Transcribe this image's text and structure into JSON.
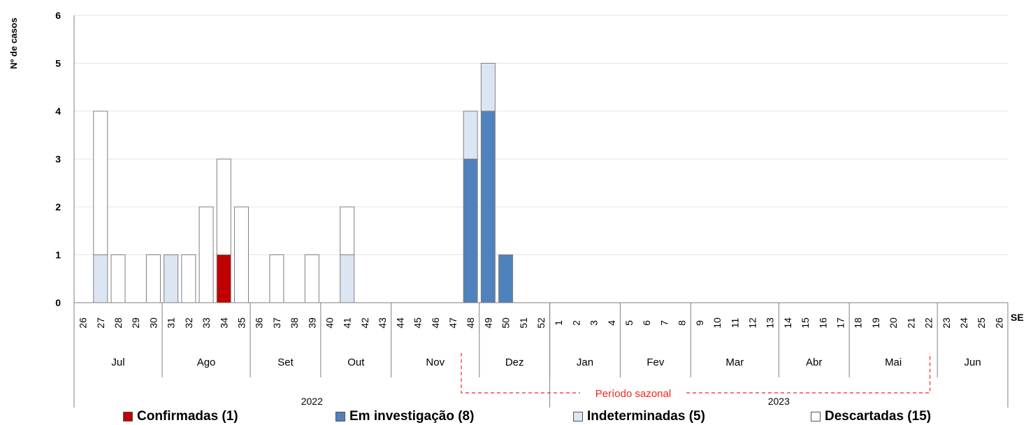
{
  "chart_data": {
    "type": "bar",
    "stacked": true,
    "ylabel": "Nº de casos",
    "xlabel": "SE",
    "ylim": [
      0,
      6
    ],
    "yticks": [
      0,
      1,
      2,
      3,
      4,
      5,
      6
    ],
    "grid": "horizontal",
    "legend_position": "bottom",
    "categories": [
      "26",
      "27",
      "28",
      "29",
      "30",
      "31",
      "32",
      "33",
      "34",
      "35",
      "36",
      "37",
      "38",
      "39",
      "40",
      "41",
      "42",
      "43",
      "44",
      "45",
      "46",
      "47",
      "48",
      "49",
      "50",
      "51",
      "52",
      "1",
      "2",
      "3",
      "4",
      "5",
      "6",
      "7",
      "8",
      "9",
      "10",
      "11",
      "12",
      "13",
      "14",
      "15",
      "16",
      "17",
      "18",
      "19",
      "20",
      "21",
      "22",
      "23",
      "24",
      "25",
      "26"
    ],
    "months": [
      {
        "label": "Jul",
        "weeks": 5
      },
      {
        "label": "Ago",
        "weeks": 5
      },
      {
        "label": "Set",
        "weeks": 4
      },
      {
        "label": "Out",
        "weeks": 4
      },
      {
        "label": "Nov",
        "weeks": 5
      },
      {
        "label": "Dez",
        "weeks": 4
      },
      {
        "label": "Jan",
        "weeks": 4
      },
      {
        "label": "Fev",
        "weeks": 4
      },
      {
        "label": "Mar",
        "weeks": 5
      },
      {
        "label": "Abr",
        "weeks": 4
      },
      {
        "label": "Mai",
        "weeks": 5
      },
      {
        "label": "Jun",
        "weeks": 4
      }
    ],
    "years": [
      {
        "label": "2022",
        "weeks": 27
      },
      {
        "label": "2023",
        "weeks": 26
      }
    ],
    "annotation": "Período sazonal",
    "series": [
      {
        "name": "Confirmadas (1)",
        "color": "#c00000",
        "values": [
          0,
          0,
          0,
          0,
          0,
          0,
          0,
          0,
          1,
          0,
          0,
          0,
          0,
          0,
          0,
          0,
          0,
          0,
          0,
          0,
          0,
          0,
          0,
          0,
          0,
          0,
          0,
          0,
          0,
          0,
          0,
          0,
          0,
          0,
          0,
          0,
          0,
          0,
          0,
          0,
          0,
          0,
          0,
          0,
          0,
          0,
          0,
          0,
          0,
          0,
          0,
          0,
          0
        ]
      },
      {
        "name": "Em investigação (8)",
        "color": "#4f81bd",
        "values": [
          0,
          0,
          0,
          0,
          0,
          0,
          0,
          0,
          0,
          0,
          0,
          0,
          0,
          0,
          0,
          0,
          0,
          0,
          0,
          0,
          0,
          0,
          3,
          4,
          1,
          0,
          0,
          0,
          0,
          0,
          0,
          0,
          0,
          0,
          0,
          0,
          0,
          0,
          0,
          0,
          0,
          0,
          0,
          0,
          0,
          0,
          0,
          0,
          0,
          0,
          0,
          0,
          0
        ]
      },
      {
        "name": "Indeterminadas (5)",
        "color": "#dce6f2",
        "values": [
          0,
          1,
          0,
          0,
          0,
          1,
          0,
          0,
          0,
          0,
          0,
          0,
          0,
          0,
          0,
          1,
          0,
          0,
          0,
          0,
          0,
          0,
          1,
          1,
          0,
          0,
          0,
          0,
          0,
          0,
          0,
          0,
          0,
          0,
          0,
          0,
          0,
          0,
          0,
          0,
          0,
          0,
          0,
          0,
          0,
          0,
          0,
          0,
          0,
          0,
          0,
          0,
          0
        ]
      },
      {
        "name": "Descartadas (15)",
        "color": "#ffffff",
        "values": [
          0,
          3,
          1,
          0,
          1,
          0,
          1,
          2,
          2,
          2,
          0,
          1,
          0,
          1,
          0,
          1,
          0,
          0,
          0,
          0,
          0,
          0,
          0,
          0,
          0,
          0,
          0,
          0,
          0,
          0,
          0,
          0,
          0,
          0,
          0,
          0,
          0,
          0,
          0,
          0,
          0,
          0,
          0,
          0,
          0,
          0,
          0,
          0,
          0,
          0,
          0,
          0,
          0
        ]
      }
    ]
  }
}
